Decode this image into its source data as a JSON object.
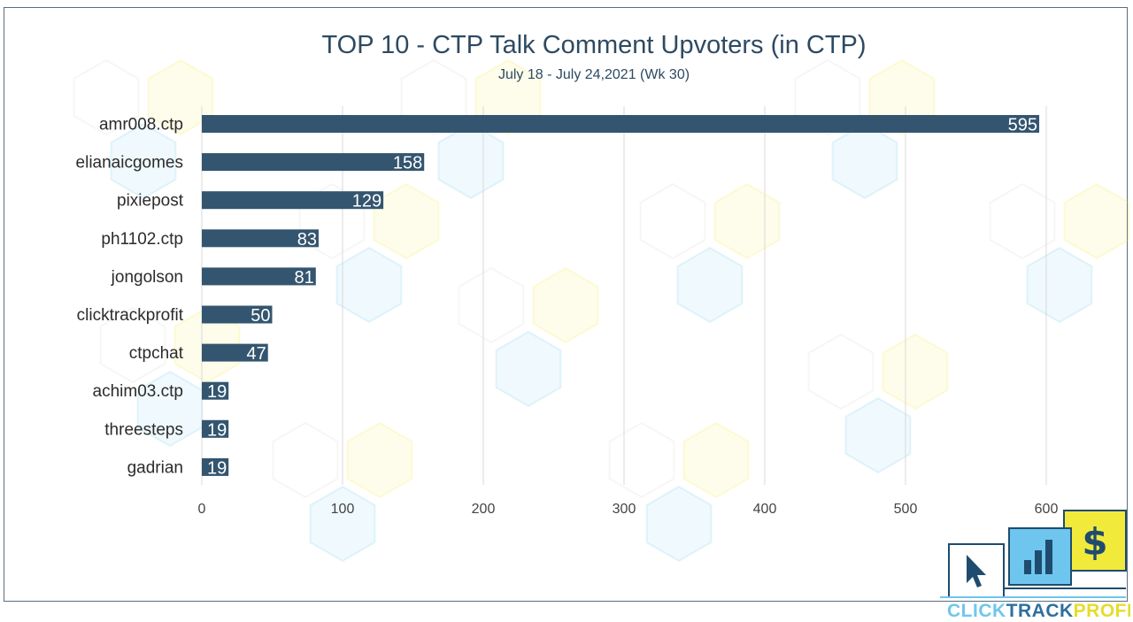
{
  "chart_data": {
    "type": "bar",
    "orientation": "horizontal",
    "title": "TOP 10 - CTP Talk Comment Upvoters (in CTP)",
    "subtitle": "July 18 - July 24,2021 (Wk 30)",
    "categories": [
      "amr008.ctp",
      "elianaicgomes",
      "pixiepost",
      "ph1102.ctp",
      "jongolson",
      "clicktrackprofit",
      "ctpchat",
      "achim03.ctp",
      "threesteps",
      "gadrian"
    ],
    "values": [
      595,
      158,
      129,
      83,
      81,
      50,
      47,
      19,
      19,
      19
    ],
    "xlim": [
      0,
      600
    ],
    "xticks": [
      0,
      100,
      200,
      300,
      400,
      500,
      600
    ],
    "grid": "vertical",
    "bar_color": "#34556f",
    "legend": "none"
  },
  "logo": {
    "brand_click": "CLICK",
    "brand_track": "TRACK",
    "brand_profit": "PROFIT",
    "dollar": "$",
    "colors": {
      "click": "#6ec6ee",
      "track": "#2e6f9e",
      "profit": "#f2ea3a",
      "outline": "#1f4c6e"
    }
  }
}
